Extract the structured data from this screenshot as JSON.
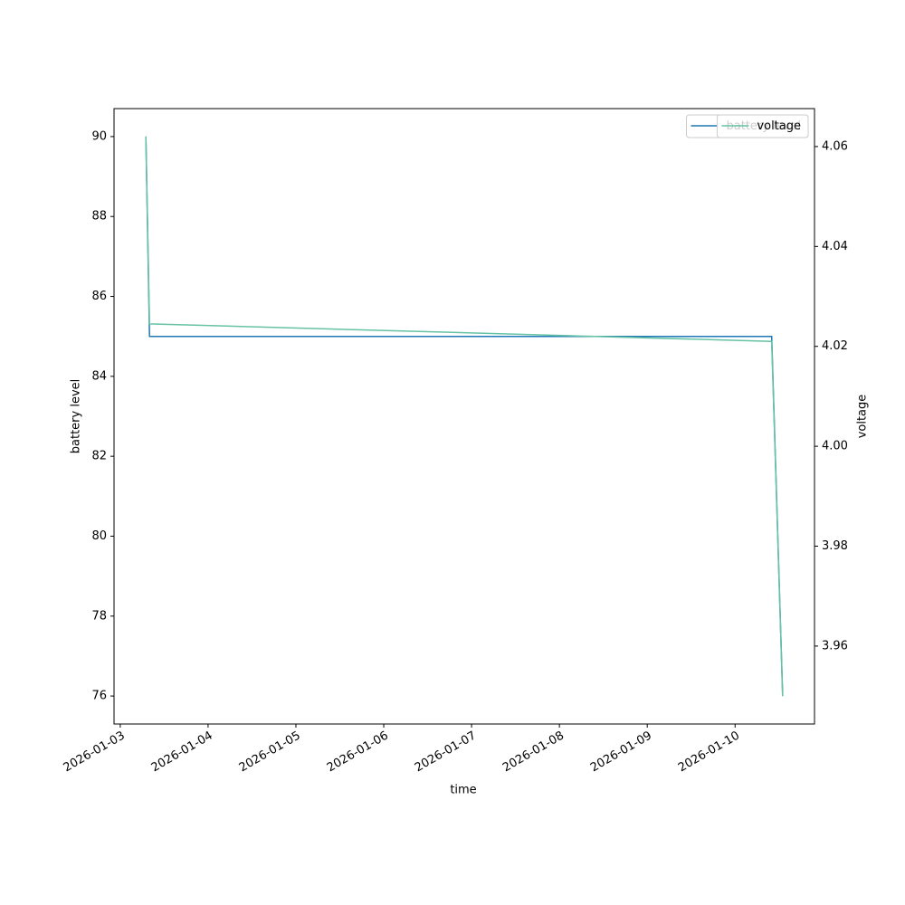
{
  "chart_data": {
    "type": "line",
    "x": [
      "2026-01-03T07:00",
      "2026-01-03T08:00",
      "2026-01-10T10:00",
      "2026-01-10T13:00"
    ],
    "xlabel": "time",
    "ylabel": "battery level",
    "y2label": "voltage",
    "xlim": [
      "2026-01-02T22:18",
      "2026-01-10T21:42"
    ],
    "xticks": [
      "2026-01-03",
      "2026-01-04",
      "2026-01-05",
      "2026-01-06",
      "2026-01-07",
      "2026-01-08",
      "2026-01-09",
      "2026-01-10"
    ],
    "ylim": [
      75.3,
      90.7
    ],
    "yticks": [
      76,
      78,
      80,
      82,
      84,
      86,
      88,
      90
    ],
    "y2lim": [
      3.9444,
      4.0676
    ],
    "y2ticks": [
      3.96,
      3.98,
      {
        "value": 4,
        "label": "4.00"
      },
      4.02,
      4.04,
      4.06
    ],
    "legend": "upper right",
    "series": [
      {
        "name": "battery level",
        "color": "#1f77b4",
        "values": [
          90,
          85,
          85,
          76
        ]
      },
      {
        "name": "voltage",
        "color": "#66c2a5",
        "axis": "y2",
        "values": [
          4.062,
          4.0245,
          4.021,
          3.95
        ]
      }
    ]
  }
}
